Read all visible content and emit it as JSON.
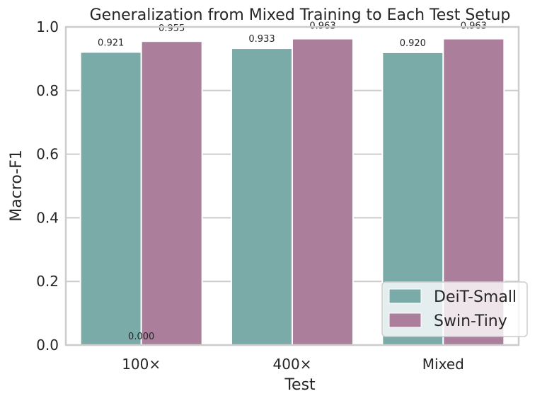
{
  "chart_data": {
    "type": "bar",
    "title": "Generalization from Mixed Training to Each Test Setup",
    "xlabel": "Test",
    "ylabel": "Macro-F1",
    "categories": [
      "100×",
      "400×",
      "Mixed"
    ],
    "series": [
      {
        "name": "DeiT-Small",
        "color": "#7aaba9",
        "values": [
          0.921,
          0.933,
          0.92
        ],
        "labels": [
          "0.921",
          "0.933",
          "0.920"
        ]
      },
      {
        "name": "Swin-Tiny",
        "color": "#ab7e9b",
        "values": [
          0.955,
          0.963,
          0.963
        ],
        "labels": [
          "0.955",
          "0.963",
          "0.963"
        ]
      }
    ],
    "extra_annotations": [
      {
        "text": "0.000",
        "category": "100×",
        "value": 0.0
      }
    ],
    "ylim": [
      0,
      1.0
    ],
    "yticks": [
      0.0,
      0.2,
      0.4,
      0.6,
      0.8,
      1.0
    ],
    "ytick_labels": [
      "0.0",
      "0.2",
      "0.4",
      "0.6",
      "0.8",
      "1.0"
    ],
    "grid": "horizontal",
    "legend_position": "bottom-right"
  }
}
